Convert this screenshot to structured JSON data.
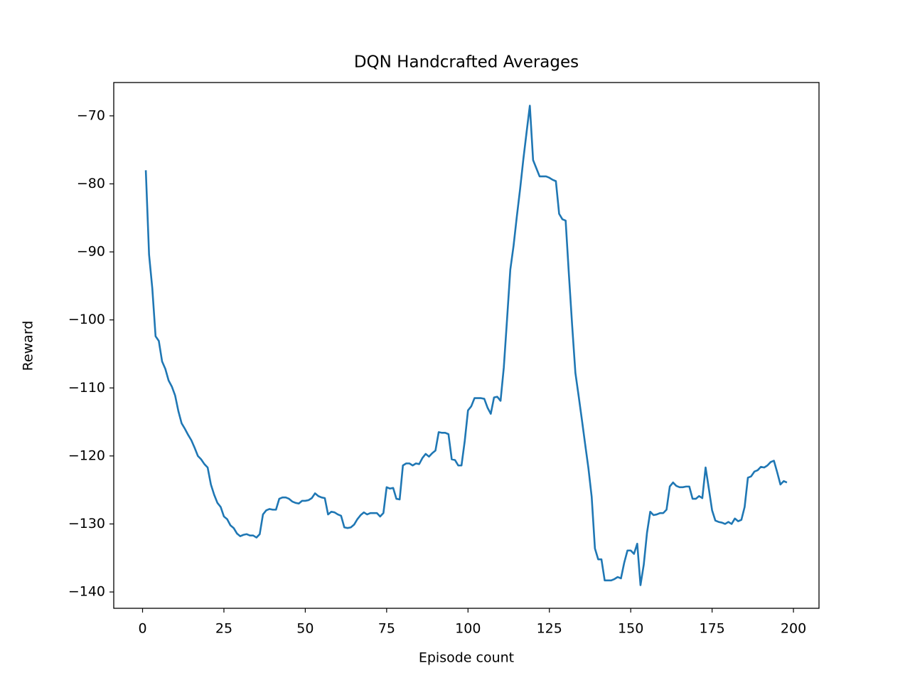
{
  "chart_data": {
    "type": "line",
    "title": "DQN Handcrafted Averages",
    "x_label": "Episode count",
    "y_label": "Reward",
    "x": [
      1,
      2,
      3,
      4,
      5,
      6,
      7,
      8,
      9,
      10,
      11,
      12,
      13,
      14,
      15,
      16,
      17,
      18,
      19,
      20,
      21,
      22,
      23,
      24,
      25,
      26,
      27,
      28,
      29,
      30,
      31,
      32,
      33,
      34,
      35,
      36,
      37,
      38,
      39,
      40,
      41,
      42,
      43,
      44,
      45,
      46,
      47,
      48,
      49,
      50,
      51,
      52,
      53,
      54,
      55,
      56,
      57,
      58,
      59,
      60,
      61,
      62,
      63,
      64,
      65,
      66,
      67,
      68,
      69,
      70,
      71,
      72,
      73,
      74,
      75,
      76,
      77,
      78,
      79,
      80,
      81,
      82,
      83,
      84,
      85,
      86,
      87,
      88,
      89,
      90,
      91,
      92,
      93,
      94,
      95,
      96,
      97,
      98,
      99,
      100,
      101,
      102,
      103,
      104,
      105,
      106,
      107,
      108,
      109,
      110,
      111,
      112,
      113,
      114,
      115,
      116,
      117,
      118,
      119,
      120,
      121,
      122,
      123,
      124,
      125,
      126,
      127,
      128,
      129,
      130,
      131,
      132,
      133,
      134,
      135,
      136,
      137,
      138,
      139,
      140,
      141,
      142,
      143,
      144,
      145,
      146,
      147,
      148,
      149,
      150,
      151,
      152,
      153,
      154,
      155,
      156,
      157,
      158,
      159,
      160,
      161,
      162,
      163,
      164,
      165,
      166,
      167,
      168,
      169,
      170,
      171,
      172,
      173,
      174,
      175,
      176,
      177,
      178,
      179,
      180,
      181,
      182,
      183,
      184,
      185,
      186,
      187,
      188,
      189,
      190,
      191,
      192,
      193,
      194,
      195,
      196,
      197,
      198
    ],
    "series": [
      {
        "color": "#1f77b4",
        "values": [
          -78.0,
          -90.4,
          -95.4,
          -102.4,
          -103.1,
          -106.1,
          -107.2,
          -108.9,
          -109.8,
          -111.1,
          -113.4,
          -115.2,
          -116.0,
          -116.9,
          -117.7,
          -118.8,
          -120.0,
          -120.5,
          -121.2,
          -121.7,
          -124.2,
          -125.7,
          -126.9,
          -127.5,
          -128.9,
          -129.3,
          -130.2,
          -130.6,
          -131.4,
          -131.8,
          -131.6,
          -131.5,
          -131.7,
          -131.7,
          -132.0,
          -131.5,
          -128.6,
          -128.0,
          -127.8,
          -127.9,
          -127.9,
          -126.3,
          -126.1,
          -126.1,
          -126.3,
          -126.7,
          -126.9,
          -127.0,
          -126.6,
          -126.6,
          -126.5,
          -126.2,
          -125.5,
          -125.9,
          -126.1,
          -126.2,
          -128.6,
          -128.2,
          -128.3,
          -128.6,
          -128.8,
          -130.5,
          -130.6,
          -130.5,
          -130.1,
          -129.3,
          -128.7,
          -128.3,
          -128.6,
          -128.4,
          -128.4,
          -128.4,
          -128.9,
          -128.4,
          -124.6,
          -124.8,
          -124.7,
          -126.3,
          -126.4,
          -121.4,
          -121.1,
          -121.1,
          -121.4,
          -121.1,
          -121.2,
          -120.3,
          -119.7,
          -120.1,
          -119.6,
          -119.2,
          -116.5,
          -116.6,
          -116.6,
          -116.8,
          -120.5,
          -120.6,
          -121.4,
          -121.4,
          -117.8,
          -113.3,
          -112.7,
          -111.5,
          -111.5,
          -111.5,
          -111.6,
          -112.9,
          -113.8,
          -111.4,
          -111.3,
          -111.9,
          -107.0,
          -99.9,
          -92.6,
          -89.1,
          -84.8,
          -80.8,
          -76.4,
          -72.4,
          -68.5,
          -76.5,
          -77.7,
          -78.9,
          -78.9,
          -78.9,
          -79.1,
          -79.4,
          -79.6,
          -84.4,
          -85.2,
          -85.4,
          -93.3,
          -100.8,
          -107.8,
          -111.2,
          -114.7,
          -118.3,
          -121.8,
          -126.0,
          -133.6,
          -135.2,
          -135.2,
          -138.3,
          -138.3,
          -138.3,
          -138.1,
          -137.8,
          -138.0,
          -135.7,
          -133.9,
          -133.9,
          -134.4,
          -132.9,
          -139.0,
          -136.0,
          -131.3,
          -128.2,
          -128.7,
          -128.6,
          -128.4,
          -128.4,
          -127.9,
          -124.5,
          -123.9,
          -124.4,
          -124.6,
          -124.6,
          -124.5,
          -124.5,
          -126.3,
          -126.3,
          -125.9,
          -126.2,
          -121.7,
          -124.8,
          -128.0,
          -129.5,
          -129.7,
          -129.8,
          -130.0,
          -129.7,
          -130.0,
          -129.2,
          -129.6,
          -129.4,
          -127.5,
          -123.2,
          -123.0,
          -122.3,
          -122.1,
          -121.6,
          -121.7,
          -121.4,
          -120.9,
          -120.7,
          -122.4,
          -124.2,
          -123.7,
          -123.9
        ]
      }
    ],
    "xlim": [
      -8.85,
      207.85
    ],
    "ylim": [
      -142.4,
      -65.1
    ],
    "xticks": [
      0,
      25,
      50,
      75,
      100,
      125,
      150,
      175,
      200
    ],
    "yticks": [
      {
        "value": -140,
        "label": "−140"
      },
      {
        "value": -130,
        "label": "−130"
      },
      {
        "value": -120,
        "label": "−120"
      },
      {
        "value": -110,
        "label": "−110"
      },
      {
        "value": -100,
        "label": "−100"
      },
      {
        "value": -90,
        "label": "−90"
      },
      {
        "value": -80,
        "label": "−80"
      },
      {
        "value": -70,
        "label": "−70"
      }
    ]
  }
}
